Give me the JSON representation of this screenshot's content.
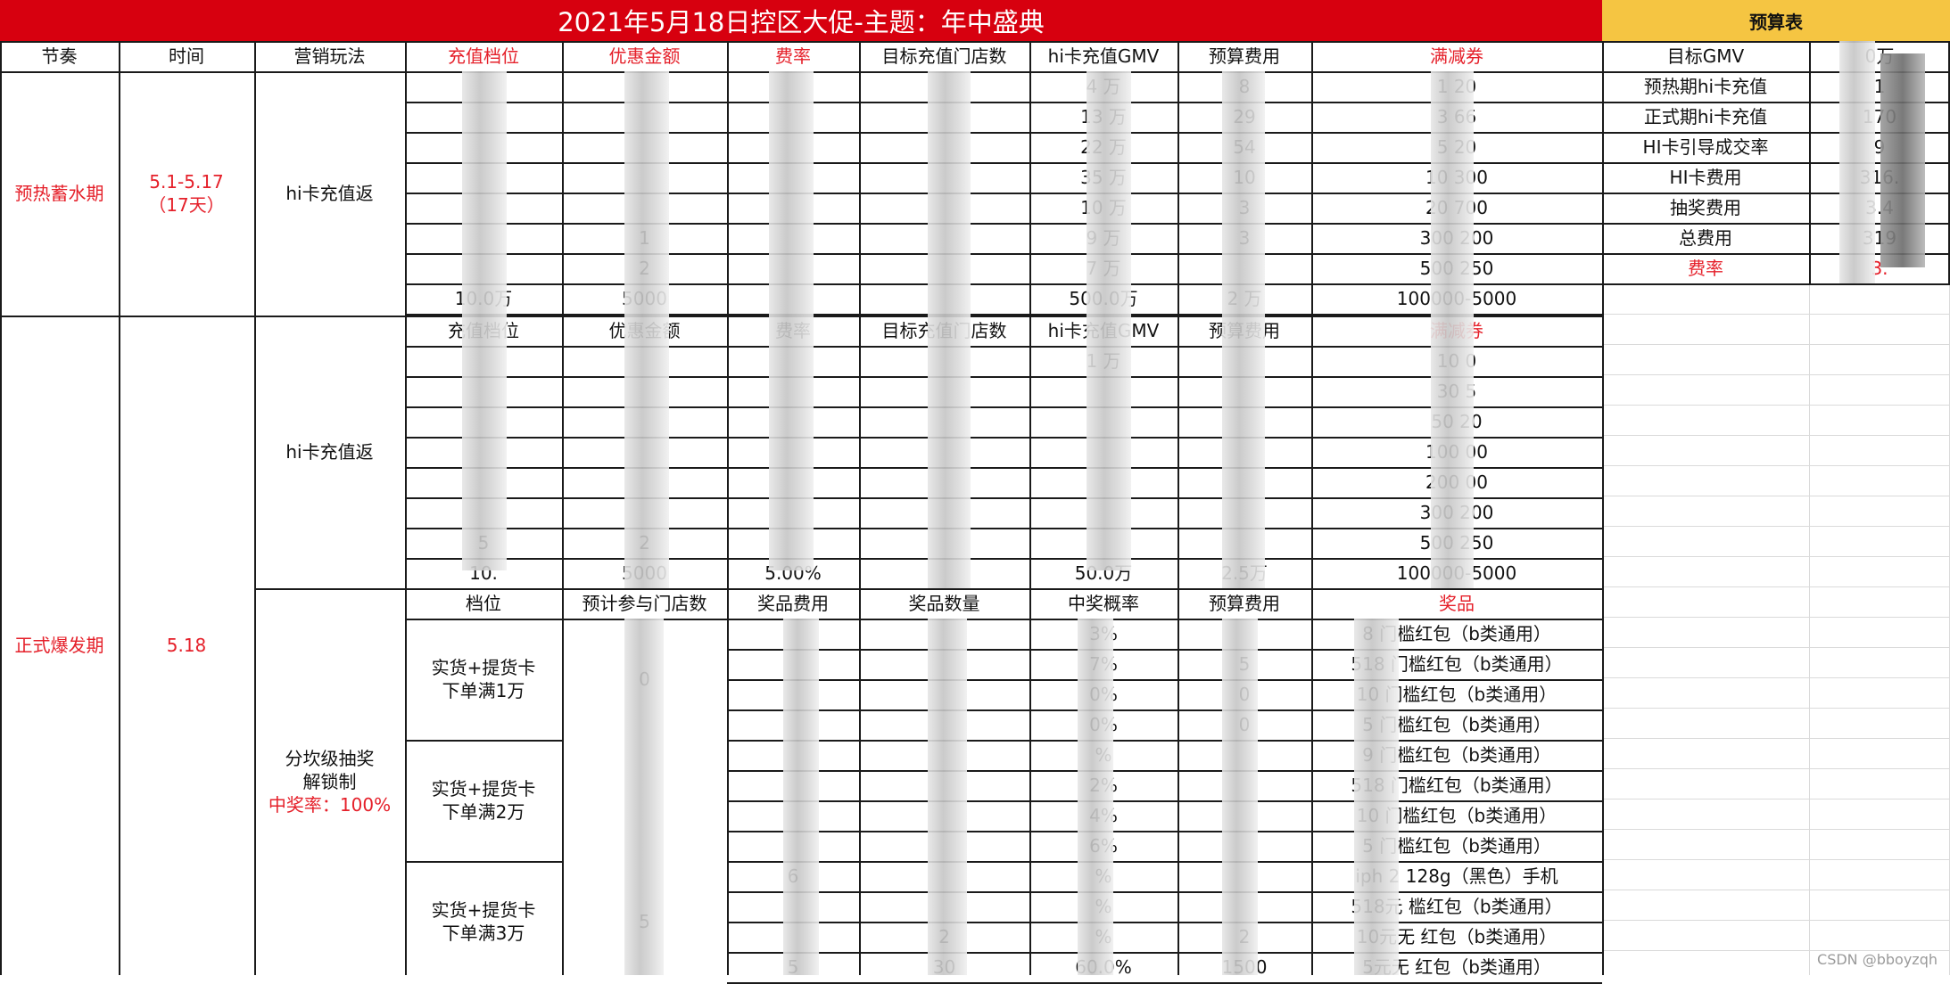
{
  "title": "2021年5月18日控区大促-主题：年中盛典",
  "budget_header": "预算表",
  "headers": {
    "jiezou": "节奏",
    "shijian": "时间",
    "yingxiao": "营销玩法",
    "dangwei": "充值档位",
    "youhui": "优惠金额",
    "feilv": "费率",
    "mubiao_mendian": "目标充值门店数",
    "gmv": "hi卡充值GMV",
    "yusuan": "预算费用",
    "manjian": "满减券"
  },
  "budget": [
    {
      "label": "目标GMV",
      "value": "0万"
    },
    {
      "label": "预热期hi卡充值",
      "value": "1"
    },
    {
      "label": "正式期hi卡充值",
      "value": "170"
    },
    {
      "label": "HI卡引导成交率",
      "value": "9"
    },
    {
      "label": "HI卡费用",
      "value": "316."
    },
    {
      "label": "抽奖费用",
      "value": "3.4"
    },
    {
      "label": "总费用",
      "value": "319"
    },
    {
      "label": "费率",
      "value": "3."
    }
  ],
  "phase1": {
    "name": "预热蓄水期",
    "time": "5.1-5.17",
    "days": "（17天）",
    "play": "hi卡充值返",
    "rows": [
      [
        "",
        "",
        "",
        "",
        "4 万",
        "8",
        "1 20"
      ],
      [
        "",
        "",
        "",
        "",
        "13 万",
        "29",
        "3 66"
      ],
      [
        "",
        "",
        "",
        "",
        "22 万",
        "54",
        "5 20"
      ],
      [
        "",
        "",
        "",
        "",
        "35 万",
        "10",
        "10 300"
      ],
      [
        "",
        "",
        "",
        "",
        "10 万",
        "3",
        "20 700"
      ],
      [
        "",
        "1",
        "",
        "",
        "9 万",
        "3",
        "300 200"
      ],
      [
        "",
        "2",
        "",
        "",
        "7 万",
        "",
        "500 250"
      ],
      [
        "10.0万",
        "5000",
        "",
        "",
        "500.0万",
        "2 万",
        "100000-5000"
      ]
    ]
  },
  "phase2": {
    "name": "正式爆发期",
    "time": "5.18",
    "play1": "hi卡充值返",
    "sub_headers": [
      "充值档位",
      "优惠金额",
      "费率",
      "目标充值门店数",
      "hi卡充值GMV",
      "预算费用",
      "满减券"
    ],
    "rows": [
      [
        "",
        "",
        "",
        "",
        "1 万",
        "",
        "10 0"
      ],
      [
        "",
        "",
        "",
        "",
        "",
        "",
        "30 5"
      ],
      [
        "",
        "",
        "",
        "",
        "",
        "",
        "50 20"
      ],
      [
        "",
        "",
        "",
        "",
        "",
        "",
        "100 00"
      ],
      [
        "",
        "",
        "",
        "",
        "",
        "",
        "200 00"
      ],
      [
        "",
        "",
        "",
        "",
        "",
        "",
        "300 200"
      ],
      [
        "5",
        "2",
        "",
        "",
        "",
        "",
        "500 250"
      ],
      [
        "10.",
        "5000",
        "5.00%",
        "",
        "50.0万",
        "2.5万",
        "100000-5000"
      ]
    ],
    "play2_line1": "分坎级抽奖",
    "play2_line2": "解锁制",
    "play2_line3": "中奖率：100%",
    "lottery_headers": [
      "档位",
      "预计参与门店数",
      "奖品费用",
      "奖品数量",
      "中奖概率",
      "预算费用",
      "奖品"
    ],
    "tiers": [
      {
        "label1": "实货+提货卡",
        "label2": "下单满1万",
        "stores": "0"
      },
      {
        "label1": "实货+提货卡",
        "label2": "下单满2万",
        "stores": ""
      },
      {
        "label1": "实货+提货卡",
        "label2": "下单满3万",
        "stores": "5"
      }
    ],
    "lottery_rows": [
      [
        "",
        "",
        "3%",
        "",
        "8 门槛红包（b类通用）"
      ],
      [
        "",
        "",
        "7%",
        "5",
        "518 门槛红包（b类通用）"
      ],
      [
        "",
        "",
        "0%",
        "0",
        "10 门槛红包（b类通用）"
      ],
      [
        "",
        "",
        "0%",
        "0",
        "5 门槛红包（b类通用）"
      ],
      [
        "",
        "",
        "%",
        "",
        "9 门槛红包（b类通用）"
      ],
      [
        "",
        "",
        "2%",
        "",
        "518 门槛红包（b类通用）"
      ],
      [
        "",
        "",
        "4%",
        "",
        "10 门槛红包（b类通用）"
      ],
      [
        "",
        "",
        "6%",
        "",
        "5 门槛红包（b类通用）"
      ],
      [
        "6",
        "",
        "%",
        "",
        "iph 2 128g（黑色）手机"
      ],
      [
        "",
        "",
        "%",
        "",
        "518元 槛红包（b类通用）"
      ],
      [
        "",
        "2",
        "%",
        "2",
        "10元无 红包（b类通用）"
      ],
      [
        "5",
        "30",
        "60.0%",
        "1500",
        "5元无 红包（b类通用）"
      ]
    ]
  },
  "watermark": "CSDN @bboyzqh"
}
